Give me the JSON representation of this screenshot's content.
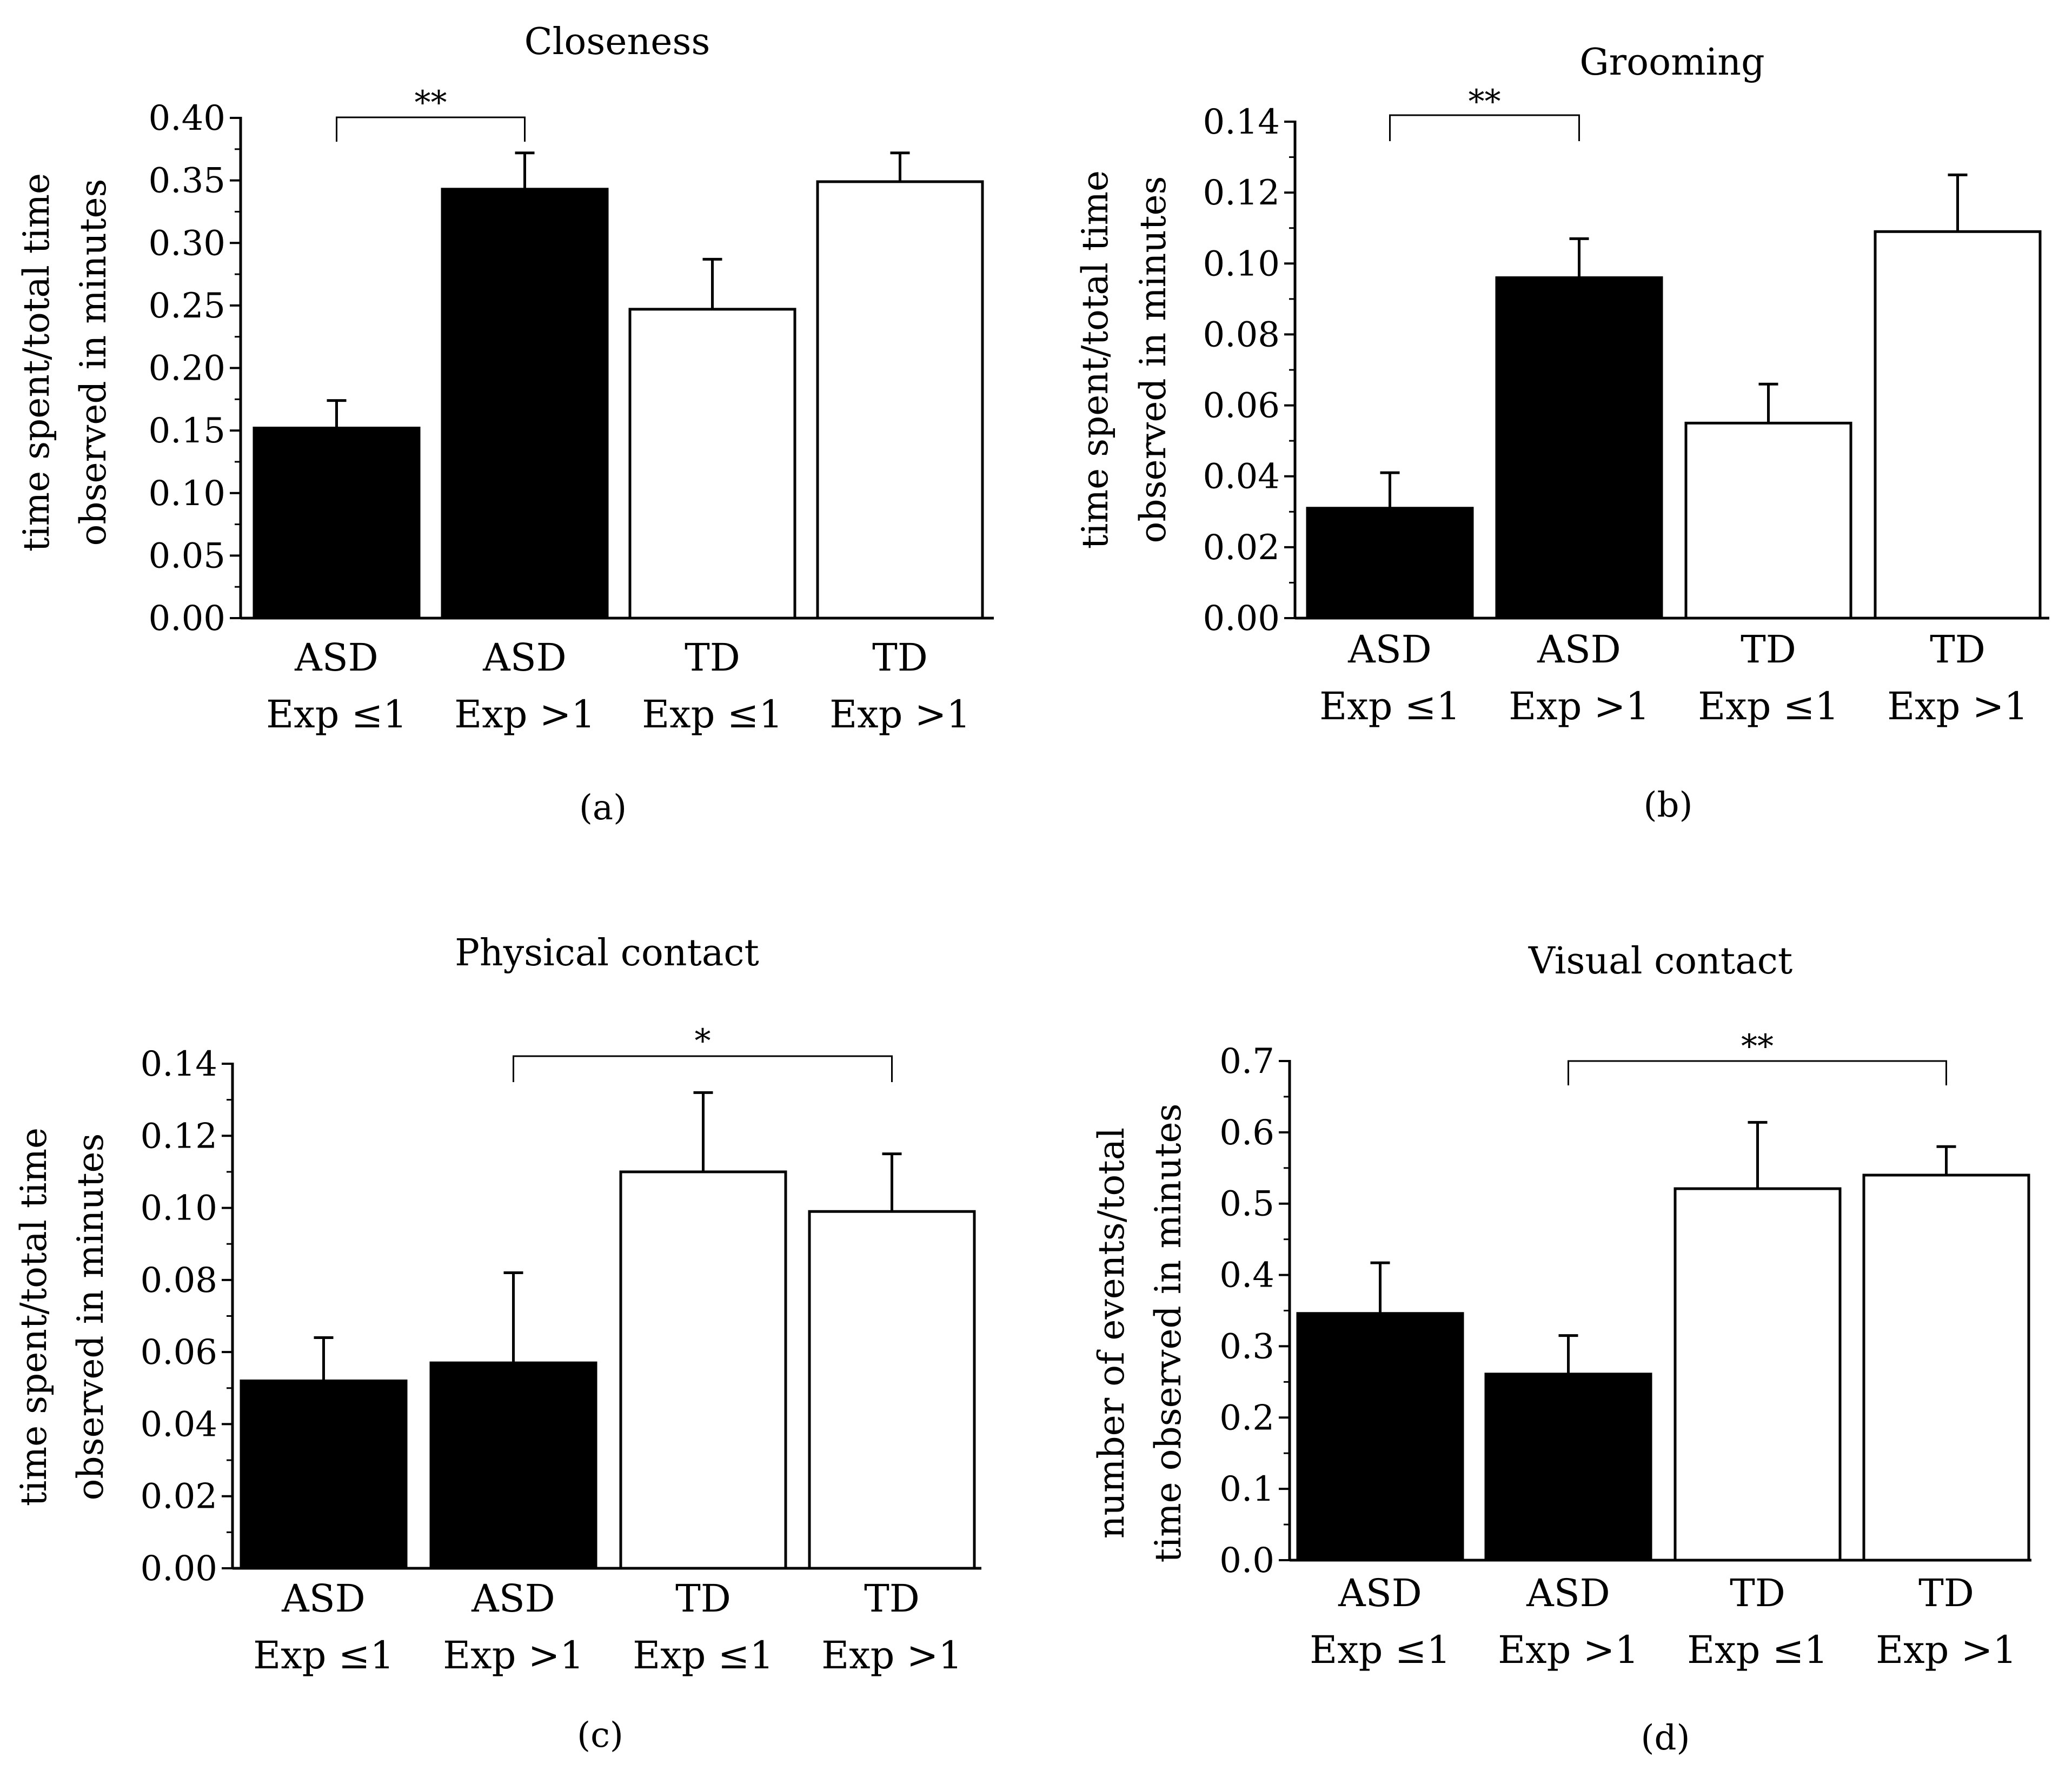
{
  "chart_data": [
    {
      "panel": "(a)",
      "type": "bar",
      "title": "Closeness",
      "ylabel": [
        "time spent/total time",
        "observed in minutes"
      ],
      "categories": [
        [
          "ASD",
          "Exp ≤1"
        ],
        [
          "ASD",
          "Exp >1"
        ],
        [
          "TD",
          "Exp ≤1"
        ],
        [
          "TD",
          "Exp >1"
        ]
      ],
      "values": [
        0.152,
        0.343,
        0.247,
        0.349
      ],
      "errors": [
        0.022,
        0.029,
        0.04,
        0.023
      ],
      "bar_fills": [
        "#000000",
        "#000000",
        "#ffffff",
        "#ffffff"
      ],
      "ylim": [
        0,
        0.4
      ],
      "yticks": [
        "0.00",
        "0.05",
        "0.10",
        "0.15",
        "0.20",
        "0.25",
        "0.30",
        "0.35",
        "0.40"
      ],
      "significance": {
        "from": 0,
        "to": 1,
        "label": "**"
      }
    },
    {
      "panel": "(b)",
      "type": "bar",
      "title": "Grooming",
      "ylabel": [
        "time spent/total time",
        "observed in minutes"
      ],
      "categories": [
        [
          "ASD",
          "Exp ≤1"
        ],
        [
          "ASD",
          "Exp >1"
        ],
        [
          "TD",
          "Exp ≤1"
        ],
        [
          "TD",
          "Exp >1"
        ]
      ],
      "values": [
        0.031,
        0.096,
        0.055,
        0.109
      ],
      "errors": [
        0.01,
        0.011,
        0.011,
        0.016
      ],
      "bar_fills": [
        "#000000",
        "#000000",
        "#ffffff",
        "#ffffff"
      ],
      "ylim": [
        0,
        0.14
      ],
      "yticks": [
        "0.00",
        "0.02",
        "0.04",
        "0.06",
        "0.08",
        "0.10",
        "0.12",
        "0.14"
      ],
      "significance": {
        "from": 0,
        "to": 1,
        "label": "**"
      }
    },
    {
      "panel": "(c)",
      "type": "bar",
      "title": "Physical contact",
      "ylabel": [
        "time spent/total time",
        "observed in minutes"
      ],
      "categories": [
        [
          "ASD",
          "Exp ≤1"
        ],
        [
          "ASD",
          "Exp >1"
        ],
        [
          "TD",
          "Exp ≤1"
        ],
        [
          "TD",
          "Exp >1"
        ]
      ],
      "values": [
        0.052,
        0.057,
        0.11,
        0.099
      ],
      "errors": [
        0.012,
        0.025,
        0.022,
        0.016
      ],
      "bar_fills": [
        "#000000",
        "#000000",
        "#ffffff",
        "#ffffff"
      ],
      "ylim": [
        0,
        0.14
      ],
      "yticks": [
        "0.00",
        "0.02",
        "0.04",
        "0.06",
        "0.08",
        "0.10",
        "0.12",
        "0.14"
      ],
      "significance": {
        "from": 1,
        "to": 3,
        "label": "*"
      }
    },
    {
      "panel": "(d)",
      "type": "bar",
      "title": "Visual contact",
      "ylabel": [
        "number of events/total",
        "time observed in minutes"
      ],
      "categories": [
        [
          "ASD",
          "Exp ≤1"
        ],
        [
          "ASD",
          "Exp >1"
        ],
        [
          "TD",
          "Exp ≤1"
        ],
        [
          "TD",
          "Exp >1"
        ]
      ],
      "values": [
        0.346,
        0.261,
        0.521,
        0.54
      ],
      "errors": [
        0.071,
        0.054,
        0.093,
        0.04
      ],
      "bar_fills": [
        "#000000",
        "#000000",
        "#ffffff",
        "#ffffff"
      ],
      "ylim": [
        0,
        0.7
      ],
      "yticks": [
        "0.0",
        "0.1",
        "0.2",
        "0.3",
        "0.4",
        "0.5",
        "0.6",
        "0.7"
      ],
      "significance": {
        "from": 1,
        "to": 3,
        "label": "**"
      }
    }
  ]
}
